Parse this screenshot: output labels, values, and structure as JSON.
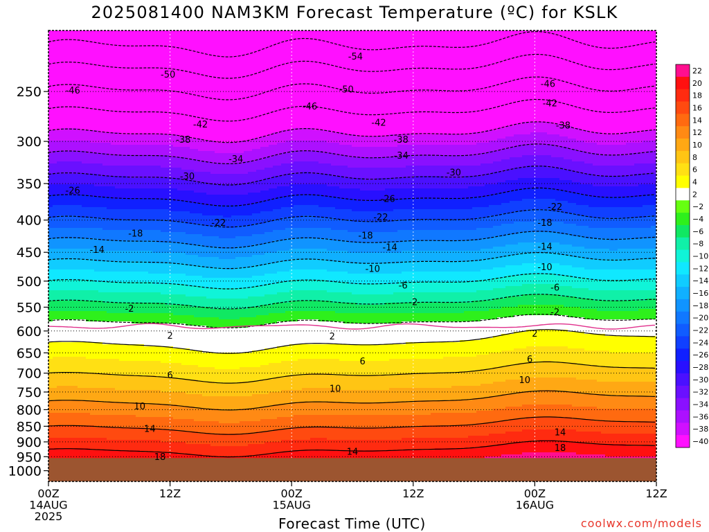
{
  "title": "2025081400 NAM3KM Forecast Temperature (ºC) for KSLK",
  "xlabel": "Forecast Time (UTC)",
  "credit": "coolwx.com/models",
  "chart_data": {
    "type": "contour",
    "y_axis": {
      "label": "",
      "scale": "log",
      "direction": "pressure decreasing upward",
      "range_hPa": [
        1040,
        200
      ],
      "ticks": [
        "250",
        "300",
        "350",
        "400",
        "450",
        "500",
        "550",
        "600",
        "650",
        "700",
        "750",
        "800",
        "850",
        "900",
        "950",
        "1000"
      ]
    },
    "x_axis": {
      "range_hours": [
        0,
        60
      ],
      "ticks": [
        {
          "hour": 0,
          "lines": [
            "00Z",
            "14AUG",
            "2025"
          ]
        },
        {
          "hour": 12,
          "lines": [
            "12Z"
          ]
        },
        {
          "hour": 24,
          "lines": [
            "00Z",
            "15AUG"
          ]
        },
        {
          "hour": 36,
          "lines": [
            "12Z"
          ]
        },
        {
          "hour": 48,
          "lines": [
            "00Z",
            "16AUG"
          ]
        },
        {
          "hour": 60,
          "lines": [
            "12Z"
          ]
        }
      ]
    },
    "grid": true,
    "surface_pressure_hPa": 955,
    "freezing_level_hPa": 590,
    "colorbar": {
      "placement": "right",
      "levels": [
        22,
        20,
        18,
        16,
        14,
        12,
        10,
        8,
        6,
        4,
        2,
        -2,
        -4,
        -6,
        -8,
        -10,
        -12,
        -14,
        -16,
        -18,
        -20,
        -22,
        -24,
        -26,
        -28,
        -30,
        -32,
        -34,
        -36,
        -38,
        -40
      ],
      "colors": [
        "#ff0f8f",
        "#ff1010",
        "#ff2b10",
        "#ff4a10",
        "#ff6a10",
        "#ff8a14",
        "#ffa814",
        "#ffc514",
        "#ffe014",
        "#ffff00",
        "#ffffff",
        "#66ff10",
        "#2ef01c",
        "#10e862",
        "#10f0a8",
        "#10f4d8",
        "#10e8ff",
        "#10ccff",
        "#10b0ff",
        "#1094ff",
        "#1078ff",
        "#105cff",
        "#1040ff",
        "#1020ff",
        "#2810ff",
        "#4a10ff",
        "#6a10ff",
        "#8a10ff",
        "#ac10ff",
        "#d010ff",
        "#ff10ff"
      ]
    },
    "contour_labels": [
      {
        "hour": 36,
        "p": 540,
        "t": -2
      },
      {
        "hour": 8,
        "p": 553,
        "t": -2
      },
      {
        "hour": 50,
        "p": 560,
        "t": -2
      },
      {
        "hour": 35,
        "p": 508,
        "t": -6
      },
      {
        "hour": 50,
        "p": 512,
        "t": -6
      },
      {
        "hour": 32,
        "p": 478,
        "t": -10
      },
      {
        "hour": 49,
        "p": 475,
        "t": -10
      },
      {
        "hour": 4.8,
        "p": 446,
        "t": -14
      },
      {
        "hour": 33.7,
        "p": 442,
        "t": -14
      },
      {
        "hour": 49,
        "p": 441,
        "t": -14
      },
      {
        "hour": 8.6,
        "p": 420,
        "t": -18
      },
      {
        "hour": 31.3,
        "p": 423,
        "t": -18
      },
      {
        "hour": 49,
        "p": 404,
        "t": -18
      },
      {
        "hour": 16.8,
        "p": 404,
        "t": -22
      },
      {
        "hour": 32.8,
        "p": 396,
        "t": -22
      },
      {
        "hour": 50,
        "p": 381,
        "t": -22
      },
      {
        "hour": 2.4,
        "p": 359,
        "t": -26
      },
      {
        "hour": 33.5,
        "p": 370,
        "t": -26
      },
      {
        "hour": 13.7,
        "p": 341,
        "t": -30
      },
      {
        "hour": 40,
        "p": 336,
        "t": -30
      },
      {
        "hour": 18.5,
        "p": 320,
        "t": -34
      },
      {
        "hour": 34.8,
        "p": 316,
        "t": -34
      },
      {
        "hour": 13.3,
        "p": 298,
        "t": -38
      },
      {
        "hour": 34.8,
        "p": 298,
        "t": -38
      },
      {
        "hour": 50.8,
        "p": 283,
        "t": -38
      },
      {
        "hour": 15,
        "p": 282,
        "t": -42
      },
      {
        "hour": 32.6,
        "p": 280,
        "t": -42
      },
      {
        "hour": 49.5,
        "p": 261,
        "t": -42
      },
      {
        "hour": 2.4,
        "p": 249,
        "t": -46
      },
      {
        "hour": 25.8,
        "p": 264,
        "t": -46
      },
      {
        "hour": 49.3,
        "p": 243,
        "t": -46
      },
      {
        "hour": 11.8,
        "p": 235,
        "t": -50
      },
      {
        "hour": 29.4,
        "p": 248,
        "t": -50
      },
      {
        "hour": 30.3,
        "p": 220,
        "t": -54
      },
      {
        "hour": 12,
        "p": 610,
        "t": 2
      },
      {
        "hour": 28,
        "p": 612,
        "t": 2
      },
      {
        "hour": 48,
        "p": 606,
        "t": 2
      },
      {
        "hour": 12,
        "p": 705,
        "t": 6
      },
      {
        "hour": 31,
        "p": 670,
        "t": 6
      },
      {
        "hour": 47.5,
        "p": 665,
        "t": 6
      },
      {
        "hour": 9,
        "p": 790,
        "t": 10
      },
      {
        "hour": 28.3,
        "p": 741,
        "t": 10
      },
      {
        "hour": 47,
        "p": 718,
        "t": 10
      },
      {
        "hour": 10,
        "p": 858,
        "t": 14
      },
      {
        "hour": 30,
        "p": 933,
        "t": 14
      },
      {
        "hour": 50.5,
        "p": 869,
        "t": 14
      },
      {
        "hour": 11,
        "p": 950,
        "t": 18
      },
      {
        "hour": 50.5,
        "p": 920,
        "t": 18
      }
    ]
  }
}
